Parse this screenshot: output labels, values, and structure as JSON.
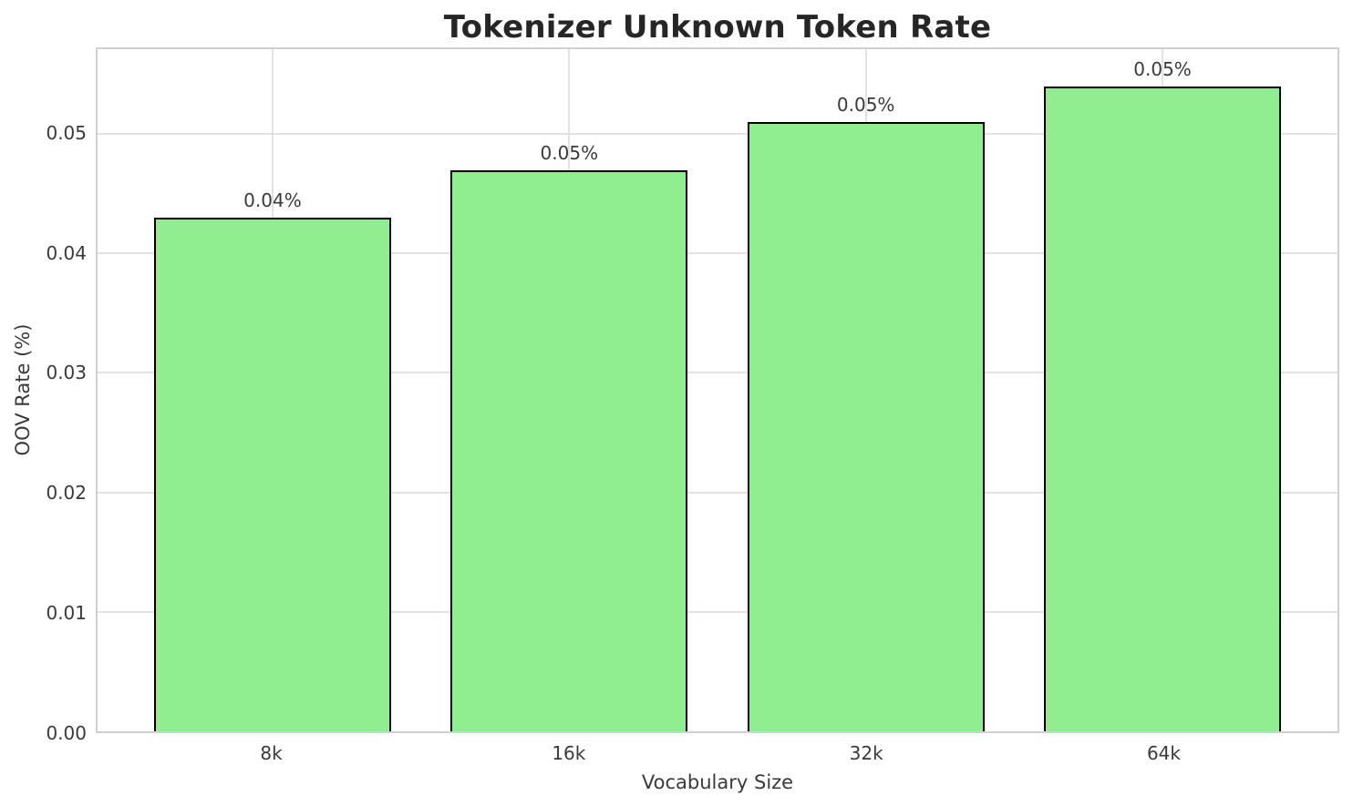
{
  "chart_data": {
    "type": "bar",
    "title": "Tokenizer Unknown Token Rate",
    "xlabel": "Vocabulary Size",
    "ylabel": "OOV Rate (%)",
    "categories": [
      "8k",
      "16k",
      "32k",
      "64k"
    ],
    "values": [
      0.043,
      0.047,
      0.051,
      0.054
    ],
    "bar_labels": [
      "0.04%",
      "0.05%",
      "0.05%",
      "0.05%"
    ],
    "ylim": [
      0,
      0.0571
    ],
    "yticks": [
      0,
      0.01,
      0.02,
      0.03,
      0.04,
      0.05
    ],
    "ytick_labels": [
      "0.00",
      "0.01",
      "0.02",
      "0.03",
      "0.04",
      "0.05"
    ],
    "grid": "both",
    "legend": "none",
    "colors": {
      "bar_fill": "#90EE90",
      "bar_edge": "#000000",
      "gridline": "#E2E2E2",
      "spine": "#D0D0D0",
      "title_text": "#262626",
      "axis_text": "#3A3A3A",
      "background": "#FFFFFF"
    }
  }
}
